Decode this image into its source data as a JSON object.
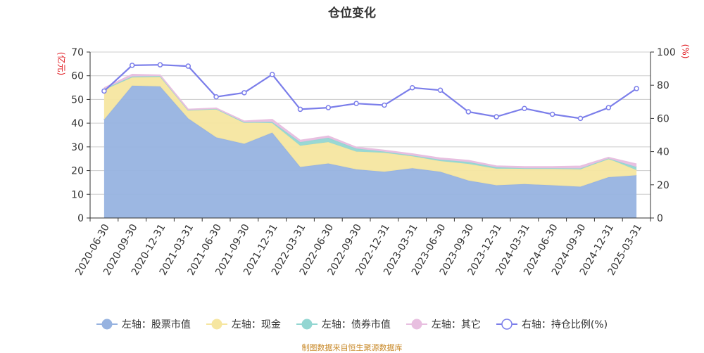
{
  "chart_data": {
    "type": "area",
    "title": "仓位变化",
    "left_axis_unit": "(亿元)",
    "right_axis_unit": "(%)",
    "ylim_left": [
      0,
      70
    ],
    "ylim_right": [
      0,
      100
    ],
    "y_ticks_left": [
      0,
      10,
      20,
      30,
      40,
      50,
      60,
      70
    ],
    "y_ticks_right": [
      0,
      20,
      40,
      60,
      80,
      100
    ],
    "grid": true,
    "legend_position": "bottom",
    "x": [
      "2020-06-30",
      "2020-09-30",
      "2020-12-31",
      "2021-03-31",
      "2021-06-30",
      "2021-09-30",
      "2021-12-31",
      "2022-03-31",
      "2022-06-30",
      "2022-09-30",
      "2022-12-31",
      "2023-03-31",
      "2023-06-30",
      "2023-09-30",
      "2023-12-31",
      "2024-03-31",
      "2024-06-30",
      "2024-09-30",
      "2024-12-31",
      "2025-03-31"
    ],
    "series": [
      {
        "name": "左轴：股票市值",
        "axis": "left",
        "kind": "area",
        "color": "#97b3e0",
        "values": [
          41.5,
          55.8,
          55.5,
          42.0,
          34.0,
          31.3,
          36.0,
          21.5,
          23.0,
          20.5,
          19.5,
          21.0,
          19.5,
          15.8,
          13.8,
          14.3,
          13.8,
          13.2,
          17.2,
          18.0
        ]
      },
      {
        "name": "左轴：现金",
        "axis": "left",
        "kind": "area",
        "color": "#f6e6a0",
        "values": [
          12.5,
          3.5,
          4.0,
          3.5,
          12.0,
          9.0,
          4.0,
          9.0,
          9.0,
          7.5,
          8.0,
          5.0,
          4.5,
          7.0,
          7.0,
          6.5,
          7.0,
          7.3,
          7.8,
          2.2
        ]
      },
      {
        "name": "左轴：债券市值",
        "axis": "left",
        "kind": "area",
        "color": "#93d6d2",
        "values": [
          0.5,
          0.4,
          0.4,
          0.1,
          0.1,
          0.1,
          0.5,
          1.5,
          1.8,
          1.3,
          0.5,
          0.4,
          0.6,
          0.8,
          0.6,
          0.2,
          0.2,
          0.4,
          0.1,
          1.3
        ]
      },
      {
        "name": "左轴：其它",
        "axis": "left",
        "kind": "area",
        "color": "#e8bfe0",
        "values": [
          0.3,
          0.8,
          0.3,
          0.2,
          0.2,
          0.4,
          1.0,
          0.7,
          0.7,
          0.5,
          0.5,
          0.6,
          0.6,
          0.6,
          0.5,
          0.6,
          0.6,
          0.9,
          0.4,
          1.2
        ]
      },
      {
        "name": "右轴：持仓比例(%)",
        "axis": "right",
        "kind": "line",
        "color": "#7b7eea",
        "values": [
          76.5,
          92.0,
          92.3,
          91.5,
          73.0,
          75.5,
          86.5,
          65.5,
          66.5,
          69.0,
          68.0,
          78.5,
          77.0,
          64.0,
          61.0,
          66.0,
          62.5,
          60.0,
          66.5,
          78.0
        ]
      }
    ]
  },
  "footer": "制图数据来自恒生聚源数据库"
}
